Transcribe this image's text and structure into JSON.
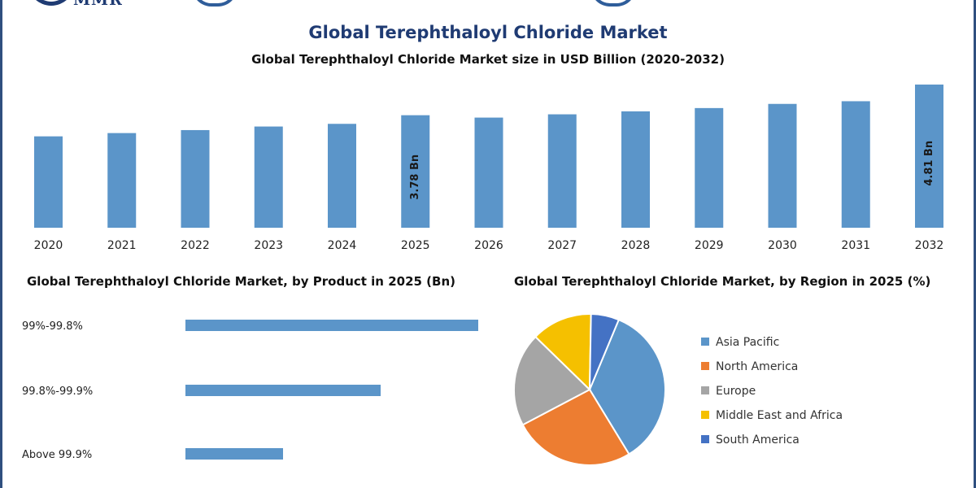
{
  "logo": {
    "text": "MMR"
  },
  "colors": {
    "bar": "#5b95c9",
    "title": "#1f3b73",
    "frame": "#2f4f7f"
  },
  "chart_data": [
    {
      "type": "bar",
      "title": "Global Terephthaloyl Chloride Market",
      "subtitle": "Global Terephthaloyl Chloride Market size in USD Billion (2020-2032)",
      "categories": [
        "2020",
        "2021",
        "2022",
        "2023",
        "2024",
        "2025",
        "2026",
        "2027",
        "2028",
        "2029",
        "2030",
        "2031",
        "2032"
      ],
      "values": [
        3.07,
        3.18,
        3.28,
        3.4,
        3.49,
        3.78,
        3.7,
        3.81,
        3.91,
        4.02,
        4.16,
        4.25,
        4.81
      ],
      "data_labels": [
        {
          "index": 5,
          "text": "3.78 Bn"
        },
        {
          "index": 12,
          "text": "4.81 Bn"
        }
      ],
      "grid": false,
      "xlabel": "",
      "ylabel": ""
    },
    {
      "type": "bar",
      "orientation": "horizontal",
      "title": "Global Terephthaloyl Chloride Market, by Product in 2025 (Bn)",
      "categories": [
        "99%-99.8%",
        "99.8%-99.9%",
        "Above 99.9%"
      ],
      "values": [
        1.8,
        1.2,
        0.6
      ],
      "xlim": [
        0,
        1.8
      ],
      "grid": false
    },
    {
      "type": "pie",
      "title": "Global Terephthaloyl Chloride Market, by Region in 2025 (%)",
      "categories": [
        "Asia Pacific",
        "North America",
        "Europe",
        "Middle East and Africa",
        "South America"
      ],
      "values": [
        35,
        26,
        20,
        13,
        6
      ],
      "colors": [
        "#5b95c9",
        "#ed7d31",
        "#a5a5a5",
        "#f5c000",
        "#4472c4"
      ],
      "legend": "right"
    }
  ]
}
